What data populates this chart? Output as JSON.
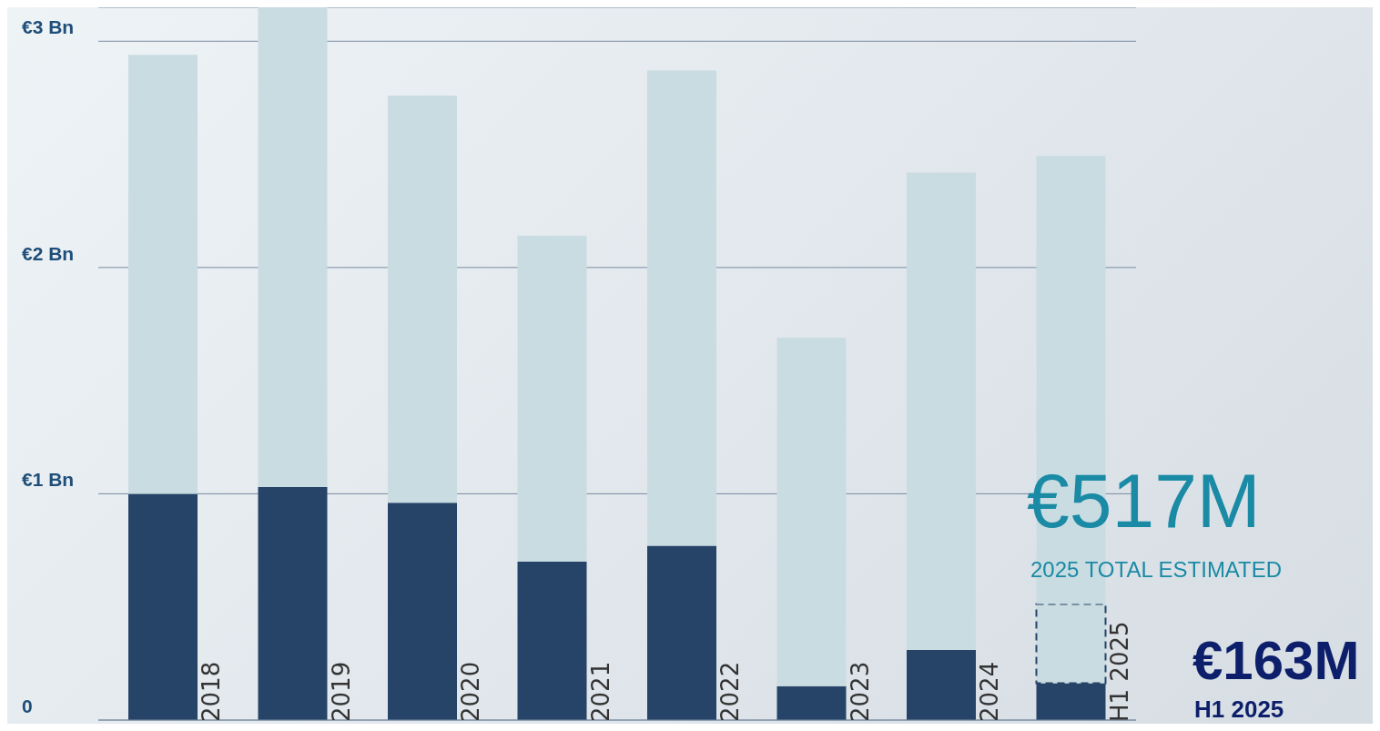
{
  "chart_data": {
    "type": "bar",
    "stacked": true,
    "categories": [
      "2018",
      "2019",
      "2020",
      "2021",
      "2022",
      "2023",
      "2024",
      "H1 2025"
    ],
    "series": [
      {
        "color": "#264468",
        "values": [
          1.0,
          1.03,
          0.96,
          0.7,
          0.77,
          0.15,
          0.31,
          0.163
        ]
      },
      {
        "color": "#c9dce2",
        "line_style": "dashed",
        "values": [
          null,
          null,
          null,
          null,
          null,
          null,
          null,
          0.35
        ]
      },
      {
        "color": "#c9dce2",
        "values": [
          1.94,
          2.12,
          1.8,
          1.44,
          2.1,
          1.54,
          2.11,
          1.98
        ]
      }
    ],
    "ylim": [
      0,
      3.15
    ],
    "yticks": [
      {
        "value": 0,
        "label": "0"
      },
      {
        "value": 1,
        "label": "€1 Bn"
      },
      {
        "value": 2,
        "label": "€2 Bn"
      },
      {
        "value": 3,
        "label": "€3 Bn"
      }
    ],
    "grid": "y",
    "legend": false,
    "annotations": [
      "€517M",
      "2025 TOTAL ESTIMATED",
      "€163M",
      "H1 2025"
    ]
  }
}
